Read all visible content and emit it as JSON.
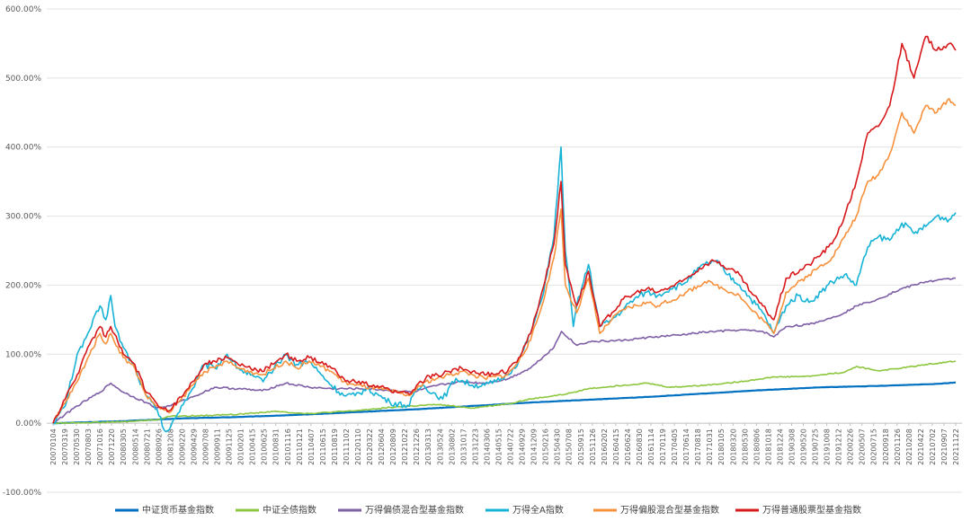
{
  "chart_data": {
    "type": "line",
    "title": "",
    "xlabel": "",
    "ylabel": "",
    "ylim": [
      -100,
      600
    ],
    "y_ticks": [
      "-100.00%",
      "0.00%",
      "100.00%",
      "200.00%",
      "300.00%",
      "400.00%",
      "500.00%",
      "600.00%"
    ],
    "y_tick_values": [
      -100,
      0,
      100,
      200,
      300,
      400,
      500,
      600
    ],
    "x_tick_labels": [
      "20070104",
      "20070319",
      "20070530",
      "20070803",
      "20071016",
      "20071220",
      "20080305",
      "20080514",
      "20080721",
      "20080926",
      "20081208",
      "20090220",
      "20090429",
      "20090708",
      "20090911",
      "20091125",
      "20100201",
      "20100415",
      "20100625",
      "20100831",
      "20101116",
      "20110121",
      "20110407",
      "20110615",
      "20110819",
      "20111102",
      "20120110",
      "20120322",
      "20120604",
      "20120809",
      "20121022",
      "20121226",
      "20130313",
      "20130524",
      "20130802",
      "20131017",
      "20131223",
      "20140306",
      "20140515",
      "20140722",
      "20140929",
      "20141209",
      "20150216",
      "20150430",
      "20150708",
      "20150915",
      "20151126",
      "20160202",
      "20160415",
      "20160624",
      "20160830",
      "20161114",
      "20170119",
      "20170405",
      "20170614",
      "20170818",
      "20171031",
      "20180105",
      "20180320",
      "20180530",
      "20180806",
      "20181018",
      "20181224",
      "20190308",
      "20190520",
      "20190725",
      "20191008",
      "20191212",
      "20200226",
      "20200507",
      "20200715",
      "20200918",
      "20201126",
      "20210208",
      "20210422",
      "20210702",
      "20210907",
      "20211122"
    ],
    "grid": true,
    "legend_position": "bottom",
    "series": [
      {
        "name": "中证货币基金指数",
        "color": "#0070C0",
        "x": [
          "20070104",
          "20080305",
          "20090220",
          "20100201",
          "20110121",
          "20120110",
          "20121226",
          "20131223",
          "20141209",
          "20151126",
          "20161114",
          "20171031",
          "20181018",
          "20191008",
          "20200918",
          "20210907",
          "20211231"
        ],
        "values": [
          0,
          3,
          7,
          9,
          12,
          16,
          20,
          25,
          30,
          34,
          38,
          43,
          48,
          52,
          54,
          57,
          59
        ]
      },
      {
        "name": "中证全债指数",
        "color": "#8DC63F",
        "x": [
          "20070104",
          "20070803",
          "20080305",
          "20080926",
          "20081208",
          "20090701",
          "20100201",
          "20100831",
          "20110407",
          "20120110",
          "20120809",
          "20130524",
          "20131223",
          "20140722",
          "20141209",
          "20150708",
          "20151126",
          "20160624",
          "20161114",
          "20170405",
          "20171031",
          "20180530",
          "20181224",
          "20190725",
          "20200226",
          "20200507",
          "20200918",
          "20210208",
          "20210702",
          "20211231"
        ],
        "values": [
          0,
          1,
          2,
          5,
          10,
          11,
          13,
          17,
          14,
          18,
          23,
          27,
          22,
          28,
          35,
          42,
          50,
          55,
          58,
          52,
          55,
          60,
          67,
          68,
          74,
          82,
          76,
          80,
          85,
          90
        ]
      },
      {
        "name": "万得偏债混合型基金指数",
        "color": "#7F5FA6",
        "x": [
          "20070104",
          "20070530",
          "20071016",
          "20071220",
          "20080305",
          "20080721",
          "20080926",
          "20081208",
          "20090429",
          "20090911",
          "20100201",
          "20100625",
          "20101116",
          "20110407",
          "20110819",
          "20120322",
          "20121226",
          "20130524",
          "20131017",
          "20140306",
          "20140722",
          "20141209",
          "20150430",
          "20150615",
          "20150915",
          "20151126",
          "20160624",
          "20161114",
          "20170614",
          "20171031",
          "20180530",
          "20181018",
          "20181224",
          "20190308",
          "20190725",
          "20191212",
          "20200226",
          "20200507",
          "20200918",
          "20210208",
          "20210702",
          "20211231"
        ],
        "values": [
          0,
          25,
          45,
          58,
          45,
          30,
          22,
          25,
          38,
          52,
          50,
          47,
          58,
          52,
          50,
          50,
          45,
          55,
          60,
          58,
          64,
          80,
          110,
          133,
          113,
          118,
          120,
          124,
          128,
          132,
          135,
          133,
          125,
          140,
          143,
          153,
          160,
          170,
          180,
          195,
          205,
          210
        ]
      },
      {
        "name": "万得全A指数",
        "color": "#17B3D6",
        "x": [
          "20070104",
          "20070319",
          "20070530",
          "20070630",
          "20070803",
          "20071016",
          "20071120",
          "20071220",
          "20080115",
          "20080305",
          "20080514",
          "20080721",
          "20080926",
          "20081108",
          "20081208",
          "20090220",
          "20090429",
          "20090708",
          "20090911",
          "20091125",
          "20100201",
          "20100415",
          "20100701",
          "20101116",
          "20110121",
          "20110407",
          "20110619",
          "20110819",
          "20111102",
          "20120110",
          "20120322",
          "20120604",
          "20120809",
          "20121204",
          "20121226",
          "20130220",
          "20130624",
          "20130913",
          "20131223",
          "20140306",
          "20140515",
          "20140722",
          "20140929",
          "20141209",
          "20150216",
          "20150430",
          "20150612",
          "20150708",
          "20150826",
          "20150915",
          "20151126",
          "20160202",
          "20160415",
          "20160624",
          "20160830",
          "20161114",
          "20170119",
          "20170405",
          "20170614",
          "20170818",
          "20171031",
          "20180105",
          "20180320",
          "20180530",
          "20180806",
          "20181018",
          "20181224",
          "20190308",
          "20190520",
          "20190725",
          "20191008",
          "20191212",
          "20200226",
          "20200507",
          "20200715",
          "20200918",
          "20201126",
          "20210208",
          "20210422",
          "20210702",
          "20210907",
          "20211122",
          "20211231"
        ],
        "values": [
          0,
          25,
          100,
          110,
          130,
          170,
          150,
          185,
          140,
          110,
          80,
          40,
          20,
          -10,
          -10,
          25,
          50,
          85,
          80,
          100,
          80,
          70,
          60,
          100,
          85,
          90,
          70,
          55,
          40,
          40,
          50,
          40,
          30,
          25,
          40,
          55,
          35,
          65,
          55,
          55,
          60,
          70,
          90,
          130,
          180,
          270,
          400,
          250,
          140,
          170,
          230,
          140,
          150,
          165,
          180,
          190,
          185,
          195,
          200,
          215,
          230,
          235,
          215,
          200,
          180,
          160,
          130,
          170,
          185,
          175,
          190,
          205,
          215,
          200,
          255,
          270,
          265,
          290,
          275,
          285,
          300,
          295,
          305
        ]
      },
      {
        "name": "万得偏股混合型基金指数",
        "color": "#F7913C",
        "x": [
          "20070104",
          "20070319",
          "20070530",
          "20070803",
          "20071016",
          "20071120",
          "20071220",
          "20080305",
          "20080514",
          "20080721",
          "20080926",
          "20081208",
          "20090220",
          "20090429",
          "20090708",
          "20090911",
          "20091125",
          "20100201",
          "20100625",
          "20101116",
          "20110121",
          "20110407",
          "20110819",
          "20111102",
          "20120110",
          "20120604",
          "20121204",
          "20121226",
          "20130313",
          "20130524",
          "20130802",
          "20131017",
          "20131223",
          "20140306",
          "20140722",
          "20140929",
          "20141209",
          "20150216",
          "20150430",
          "20150612",
          "20150708",
          "20150915",
          "20151126",
          "20160202",
          "20160415",
          "20160624",
          "20161114",
          "20170119",
          "20170614",
          "20171031",
          "20180105",
          "20180530",
          "20180806",
          "20181018",
          "20181224",
          "20190308",
          "20190725",
          "20191212",
          "20200226",
          "20200507",
          "20200715",
          "20200918",
          "20201126",
          "20210208",
          "20210422",
          "20210702",
          "20210907",
          "20211122",
          "20211231"
        ],
        "values": [
          0,
          30,
          60,
          95,
          130,
          115,
          130,
          95,
          80,
          40,
          25,
          15,
          35,
          55,
          75,
          80,
          90,
          80,
          70,
          90,
          80,
          90,
          75,
          60,
          55,
          50,
          40,
          45,
          60,
          65,
          70,
          75,
          70,
          65,
          70,
          90,
          120,
          170,
          240,
          310,
          200,
          160,
          210,
          130,
          150,
          165,
          175,
          170,
          185,
          205,
          200,
          185,
          165,
          150,
          130,
          190,
          215,
          240,
          270,
          300,
          350,
          360,
          390,
          450,
          420,
          460,
          450,
          470,
          460
        ]
      },
      {
        "name": "万得普通股票型基金指数",
        "color": "#D7191C",
        "x": [
          "20070104",
          "20070319",
          "20070530",
          "20070803",
          "20071016",
          "20071120",
          "20071220",
          "20080305",
          "20080514",
          "20080721",
          "20080926",
          "20081208",
          "20090220",
          "20090429",
          "20090708",
          "20090911",
          "20091125",
          "20100201",
          "20100625",
          "20101116",
          "20110121",
          "20110407",
          "20110819",
          "20111102",
          "20120110",
          "20120604",
          "20121204",
          "20121226",
          "20130313",
          "20130524",
          "20130802",
          "20131017",
          "20131223",
          "20140306",
          "20140722",
          "20140929",
          "20141209",
          "20150216",
          "20150430",
          "20150612",
          "20150708",
          "20150915",
          "20151126",
          "20160202",
          "20160415",
          "20160624",
          "20161114",
          "20170119",
          "20170614",
          "20171031",
          "20180105",
          "20180530",
          "20180806",
          "20181018",
          "20181224",
          "20190308",
          "20190725",
          "20191212",
          "20200226",
          "20200507",
          "20200715",
          "20200918",
          "20201126",
          "20210208",
          "20210422",
          "20210702",
          "20210907",
          "20211122",
          "20211231"
        ],
        "values": [
          0,
          35,
          70,
          110,
          140,
          125,
          140,
          100,
          85,
          45,
          28,
          18,
          38,
          60,
          85,
          90,
          95,
          85,
          75,
          100,
          90,
          95,
          80,
          65,
          60,
          52,
          42,
          48,
          65,
          70,
          75,
          80,
          75,
          70,
          75,
          95,
          130,
          190,
          260,
          350,
          230,
          170,
          220,
          140,
          160,
          180,
          195,
          190,
          205,
          230,
          235,
          215,
          190,
          170,
          150,
          210,
          230,
          260,
          300,
          350,
          420,
          430,
          460,
          550,
          500,
          560,
          540,
          550,
          540
        ]
      }
    ]
  }
}
